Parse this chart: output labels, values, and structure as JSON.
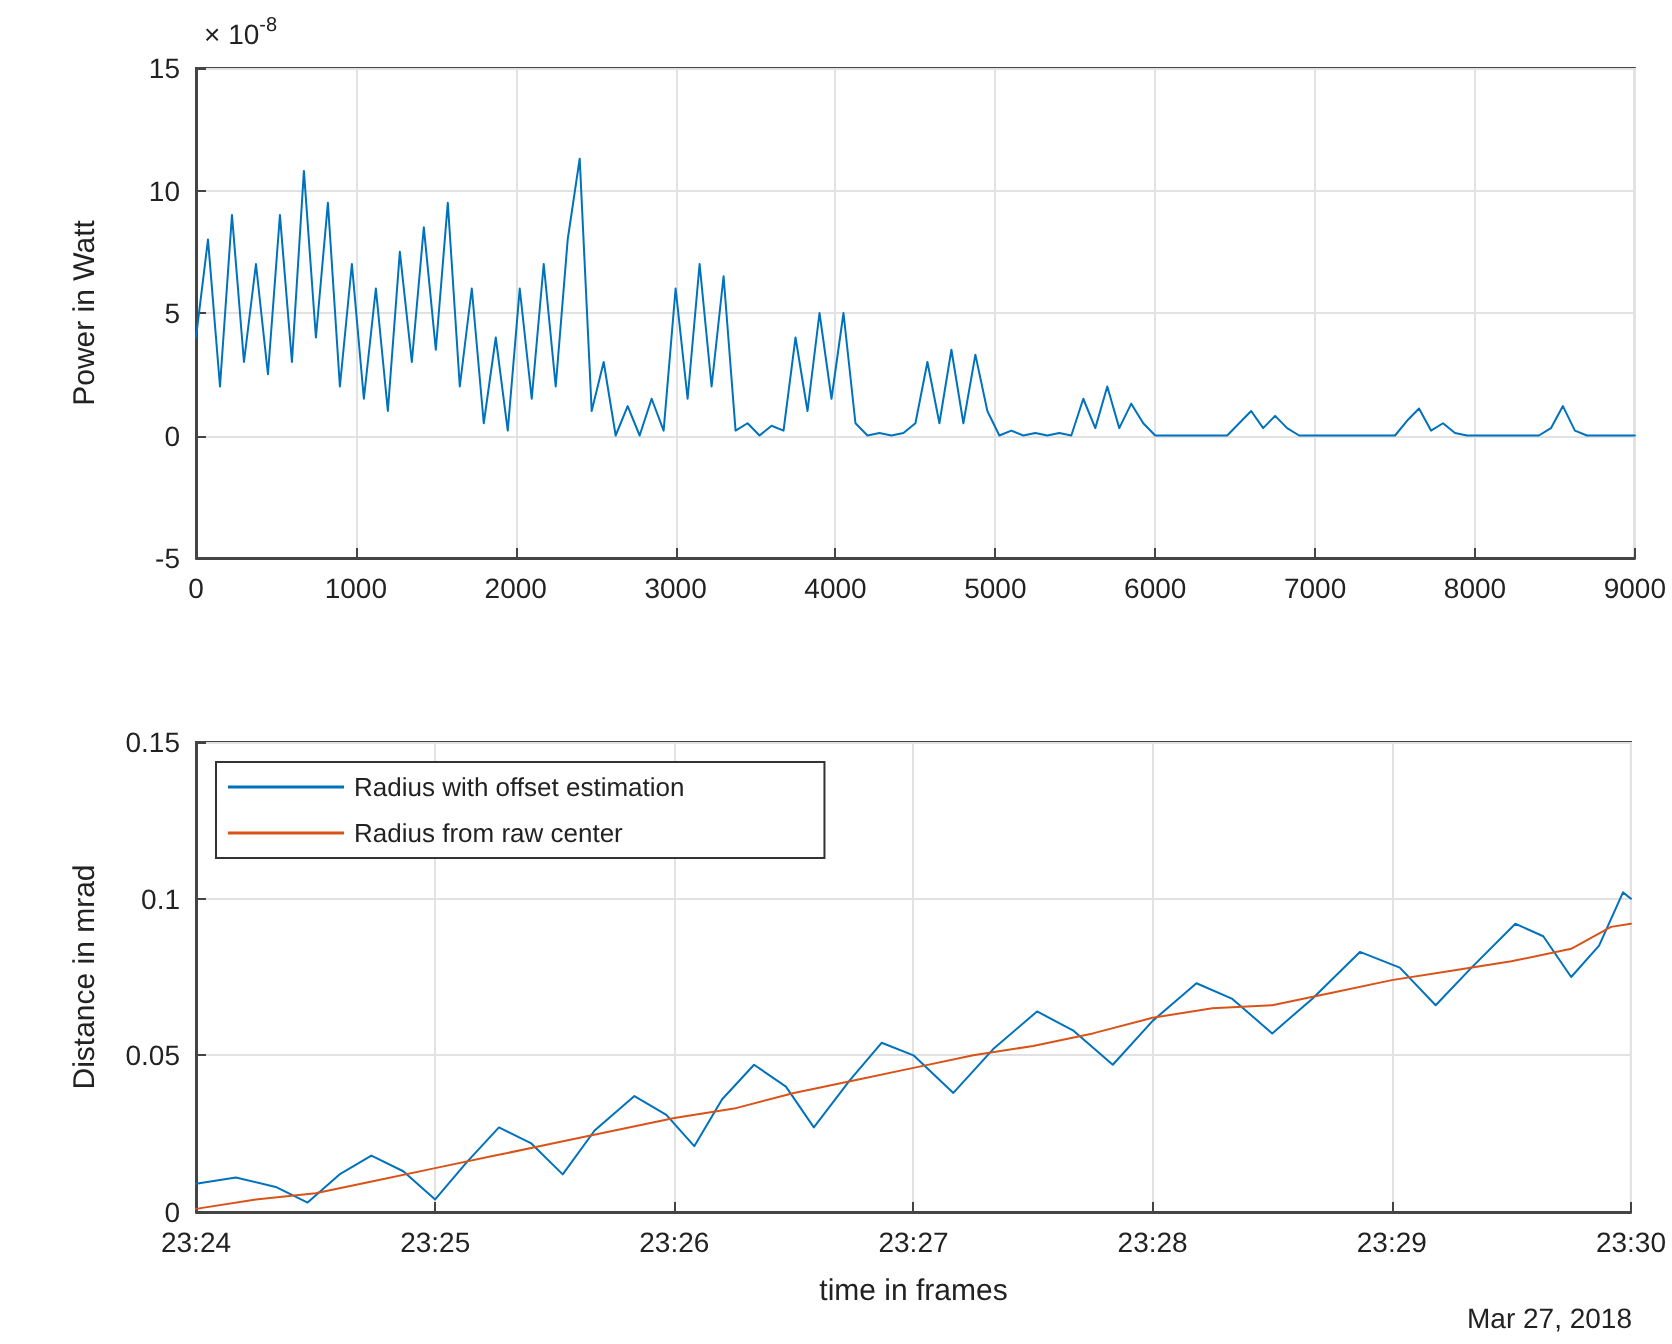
{
  "chart_data": [
    {
      "type": "line",
      "ylabel": "Power in Watt",
      "annotations": [
        "× 10$^{-8}$"
      ],
      "x": [
        0,
        75,
        150,
        225,
        300,
        375,
        450,
        525,
        600,
        675,
        750,
        825,
        900,
        975,
        1050,
        1125,
        1200,
        1275,
        1350,
        1425,
        1500,
        1575,
        1650,
        1725,
        1800,
        1875,
        1950,
        2025,
        2100,
        2175,
        2250,
        2325,
        2400,
        2475,
        2550,
        2625,
        2700,
        2775,
        2850,
        2925,
        3000,
        3075,
        3150,
        3225,
        3300,
        3375,
        3450,
        3525,
        3600,
        3675,
        3750,
        3825,
        3900,
        3975,
        4050,
        4125,
        4200,
        4275,
        4350,
        4425,
        4500,
        4575,
        4650,
        4725,
        4800,
        4875,
        4950,
        5025,
        5100,
        5175,
        5250,
        5325,
        5400,
        5475,
        5550,
        5625,
        5700,
        5775,
        5850,
        5925,
        6000,
        6075,
        6150,
        6225,
        6300,
        6375,
        6450,
        6525,
        6600,
        6675,
        6750,
        6825,
        6900,
        6975,
        7050,
        7125,
        7200,
        7275,
        7350,
        7425,
        7500,
        7575,
        7650,
        7725,
        7800,
        7875,
        7950,
        8025,
        8100,
        8175,
        8250,
        8325,
        8400,
        8475,
        8550,
        8625,
        8700,
        8775,
        8850,
        8925,
        9000
      ],
      "series": [
        {
          "color": "#0072bd",
          "values": [
            4,
            8,
            2,
            9,
            3,
            7,
            2.5,
            9,
            3,
            10.8,
            4,
            9.5,
            2,
            7,
            1.5,
            6,
            1,
            7.5,
            3,
            8.5,
            3.5,
            9.5,
            2,
            6,
            0.5,
            4,
            0.2,
            6,
            1.5,
            7,
            2,
            8,
            11.3,
            1,
            3,
            0,
            1.2,
            0,
            1.5,
            0.2,
            6,
            1.5,
            7,
            2,
            6.5,
            0.2,
            0.5,
            0,
            0.4,
            0.2,
            4,
            1,
            5,
            1.5,
            5,
            0.5,
            0,
            0.1,
            0,
            0.1,
            0.5,
            3,
            0.5,
            3.5,
            0.5,
            3.3,
            1,
            0,
            0.2,
            0,
            0.1,
            0,
            0.1,
            0,
            1.5,
            0.3,
            2,
            0.3,
            1.3,
            0.5,
            0,
            0,
            0,
            0,
            0,
            0,
            0,
            0.5,
            1,
            0.3,
            0.8,
            0.3,
            0,
            0,
            0,
            0,
            0,
            0,
            0,
            0,
            0,
            0.6,
            1.1,
            0.2,
            0.5,
            0.1,
            0,
            0,
            0,
            0,
            0,
            0,
            0,
            0.3,
            1.2,
            0.2,
            0,
            0,
            0,
            0,
            0
          ]
        }
      ],
      "xlim": [
        0,
        9000
      ],
      "xticks": [
        0,
        1000,
        2000,
        3000,
        4000,
        5000,
        6000,
        7000,
        8000,
        9000
      ],
      "ylim": [
        -5,
        15
      ],
      "yticks": [
        -5,
        0,
        5,
        10,
        15
      ],
      "grid": true,
      "legend": false,
      "marker": "none",
      "line_style": "solid"
    },
    {
      "type": "line",
      "xlabel": "time in frames",
      "ylabel": "Distance in mrad",
      "annotations": [
        "Mar 27, 2018"
      ],
      "series": [
        {
          "name": "Radius with offset estimation",
          "color": "#0072bd",
          "x": [
            "2018-03-27T23:24:00",
            "2018-03-27T23:24:10",
            "2018-03-27T23:24:20",
            "2018-03-27T23:24:28",
            "2018-03-27T23:24:36",
            "2018-03-27T23:24:44",
            "2018-03-27T23:24:52",
            "2018-03-27T23:25:00",
            "2018-03-27T23:25:08",
            "2018-03-27T23:25:16",
            "2018-03-27T23:25:24",
            "2018-03-27T23:25:32",
            "2018-03-27T23:25:40",
            "2018-03-27T23:25:50",
            "2018-03-27T23:25:58",
            "2018-03-27T23:26:05",
            "2018-03-27T23:26:12",
            "2018-03-27T23:26:20",
            "2018-03-27T23:26:28",
            "2018-03-27T23:26:35",
            "2018-03-27T23:26:44",
            "2018-03-27T23:26:52",
            "2018-03-27T23:27:00",
            "2018-03-27T23:27:10",
            "2018-03-27T23:27:20",
            "2018-03-27T23:27:31",
            "2018-03-27T23:27:40",
            "2018-03-27T23:27:50",
            "2018-03-27T23:28:00",
            "2018-03-27T23:28:11",
            "2018-03-27T23:28:20",
            "2018-03-27T23:28:30",
            "2018-03-27T23:28:40",
            "2018-03-27T23:28:52",
            "2018-03-27T23:29:02",
            "2018-03-27T23:29:11",
            "2018-03-27T23:29:20",
            "2018-03-27T23:29:31",
            "2018-03-27T23:29:38",
            "2018-03-27T23:29:45",
            "2018-03-27T23:29:52",
            "2018-03-27T23:29:58",
            "2018-03-27T23:30:00"
          ],
          "values": [
            0.009,
            0.011,
            0.008,
            0.003,
            0.012,
            0.018,
            0.013,
            0.004,
            0.016,
            0.027,
            0.022,
            0.012,
            0.026,
            0.037,
            0.031,
            0.021,
            0.036,
            0.047,
            0.04,
            0.027,
            0.042,
            0.054,
            0.05,
            0.038,
            0.052,
            0.064,
            0.058,
            0.047,
            0.061,
            0.073,
            0.068,
            0.057,
            0.068,
            0.083,
            0.078,
            0.066,
            0.078,
            0.092,
            0.088,
            0.075,
            0.085,
            0.102,
            0.1
          ]
        },
        {
          "name": "Radius from raw center",
          "color": "#d95319",
          "x": [
            "2018-03-27T23:24:00",
            "2018-03-27T23:24:15",
            "2018-03-27T23:24:30",
            "2018-03-27T23:24:45",
            "2018-03-27T23:25:00",
            "2018-03-27T23:25:15",
            "2018-03-27T23:25:30",
            "2018-03-27T23:25:45",
            "2018-03-27T23:26:00",
            "2018-03-27T23:26:15",
            "2018-03-27T23:26:30",
            "2018-03-27T23:26:45",
            "2018-03-27T23:27:00",
            "2018-03-27T23:27:15",
            "2018-03-27T23:27:30",
            "2018-03-27T23:27:45",
            "2018-03-27T23:28:00",
            "2018-03-27T23:28:15",
            "2018-03-27T23:28:30",
            "2018-03-27T23:28:45",
            "2018-03-27T23:29:00",
            "2018-03-27T23:29:15",
            "2018-03-27T23:29:30",
            "2018-03-27T23:29:45",
            "2018-03-27T23:29:55",
            "2018-03-27T23:30:00"
          ],
          "values": [
            0.001,
            0.004,
            0.006,
            0.01,
            0.014,
            0.018,
            0.022,
            0.026,
            0.03,
            0.033,
            0.038,
            0.042,
            0.046,
            0.05,
            0.053,
            0.057,
            0.062,
            0.065,
            0.066,
            0.07,
            0.074,
            0.077,
            0.08,
            0.084,
            0.091,
            0.092
          ]
        }
      ],
      "xlim": [
        "2018-03-27T23:24",
        "2018-03-27T23:30"
      ],
      "xticks": [
        {
          "value": "2018-03-27T23:24",
          "label": "23:24"
        },
        {
          "value": "2018-03-27T23:25",
          "label": "23:25"
        },
        {
          "value": "2018-03-27T23:26",
          "label": "23:26"
        },
        {
          "value": "2018-03-27T23:27",
          "label": "23:27"
        },
        {
          "value": "2018-03-27T23:28",
          "label": "23:28"
        },
        {
          "value": "2018-03-27T23:29",
          "label": "23:29"
        },
        {
          "value": "2018-03-27T23:30",
          "label": "23:30"
        }
      ],
      "ylim": [
        0,
        0.15
      ],
      "yticks": [
        0,
        0.05,
        0.1,
        0.15
      ],
      "grid": true,
      "legend": "top left",
      "marker": "none",
      "line_style": "solid"
    }
  ]
}
